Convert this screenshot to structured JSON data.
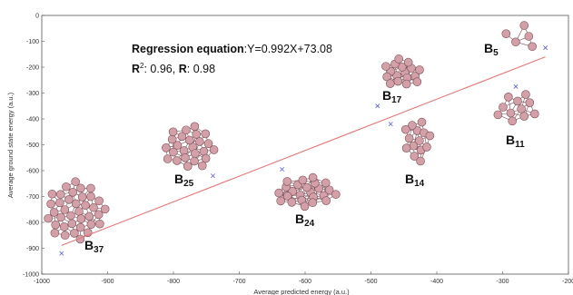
{
  "chart_data": {
    "type": "scatter",
    "title": "",
    "xlabel": "Average predicted energy (a.u.)",
    "ylabel": "Average ground state energy (a.u.)",
    "xlim": [
      -1000,
      -200
    ],
    "ylim": [
      -1000,
      0
    ],
    "x_ticks": [
      -1000,
      -900,
      -800,
      -700,
      -600,
      -500,
      -400,
      -300,
      -200
    ],
    "y_ticks": [
      0,
      -100,
      -200,
      -300,
      -400,
      -500,
      -600,
      -700,
      -800,
      -900,
      -1000
    ],
    "grid": false,
    "points": [
      {
        "x": -970,
        "y": -920
      },
      {
        "x": -740,
        "y": -620
      },
      {
        "x": -635,
        "y": -595
      },
      {
        "x": -490,
        "y": -350
      },
      {
        "x": -470,
        "y": -420
      },
      {
        "x": -280,
        "y": -275
      },
      {
        "x": -235,
        "y": -125
      }
    ],
    "regression": {
      "slope": 0.992,
      "intercept": 73.08,
      "x_range": [
        -970,
        -235
      ],
      "color": "#e07878"
    },
    "annotation": {
      "equation_prefix": "Regression equation",
      "equation_body": ":Y=0.992X+73.08",
      "r2_label": "R",
      "r2_sup": "2",
      "r2_value": ": 0.96, ",
      "r_label": "R",
      "r_value": ": 0.98"
    },
    "clusters": [
      {
        "prefix": "B",
        "sub": "5"
      },
      {
        "prefix": "B",
        "sub": "17"
      },
      {
        "prefix": "B",
        "sub": "11"
      },
      {
        "prefix": "B",
        "sub": "25"
      },
      {
        "prefix": "B",
        "sub": "14"
      },
      {
        "prefix": "B",
        "sub": "24"
      },
      {
        "prefix": "B",
        "sub": "37"
      }
    ],
    "colors": {
      "marker": "#5b5bd6",
      "atom": "#d4a0a8",
      "atom_edge": "#7a4f56",
      "axis": "#555555"
    }
  }
}
